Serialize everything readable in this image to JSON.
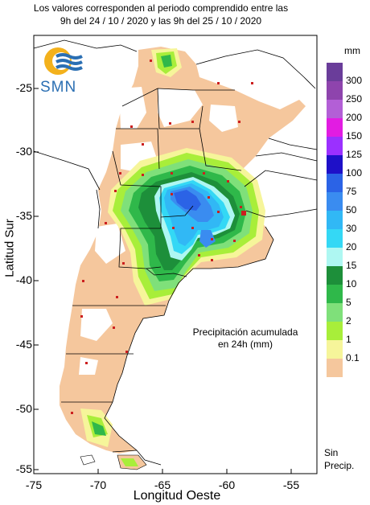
{
  "header": {
    "line1": "Los valores corresponden al periodo comprendido entre las",
    "line2": "9h del 24 / 10 / 2020  y las 9h del 25 / 10 / 2020"
  },
  "logo": {
    "text": "SMN",
    "icon": "smn-sun-waves-icon"
  },
  "axes": {
    "ylabel": "Latitud Sur",
    "xlabel": "Longitud Oeste",
    "yticks": [
      "-25",
      "-30",
      "-35",
      "-40",
      "-45",
      "-50",
      "-55"
    ],
    "xticks": [
      "-75",
      "-70",
      "-65",
      "-60",
      "-55"
    ]
  },
  "note": {
    "line1": "Precipitación acumulada",
    "line2": "en 24h (mm)"
  },
  "legend": {
    "unit": "mm",
    "items": [
      {
        "label": "300",
        "color": "#6a3d9a"
      },
      {
        "label": "250",
        "color": "#8e44ad"
      },
      {
        "label": "200",
        "color": "#b35fd6"
      },
      {
        "label": "150",
        "color": "#e21ce2"
      },
      {
        "label": "125",
        "color": "#9b30ff"
      },
      {
        "label": "100",
        "color": "#1e10c8"
      },
      {
        "label": "75",
        "color": "#2b63e6"
      },
      {
        "label": "50",
        "color": "#3a8cf0"
      },
      {
        "label": "30",
        "color": "#31b8f5"
      },
      {
        "label": "20",
        "color": "#34d8f5"
      },
      {
        "label": "15",
        "color": "#aef7f2"
      },
      {
        "label": "10",
        "color": "#1d8f3a"
      },
      {
        "label": "5",
        "color": "#2fb84a"
      },
      {
        "label": "2",
        "color": "#7fe07a"
      },
      {
        "label": "1",
        "color": "#a8ee3a"
      },
      {
        "label": "0.1",
        "color": "#f6f59a"
      },
      {
        "label": "",
        "color": "#f5c79d"
      }
    ],
    "nodata_line1": "Sin",
    "nodata_line2": "Precip."
  }
}
